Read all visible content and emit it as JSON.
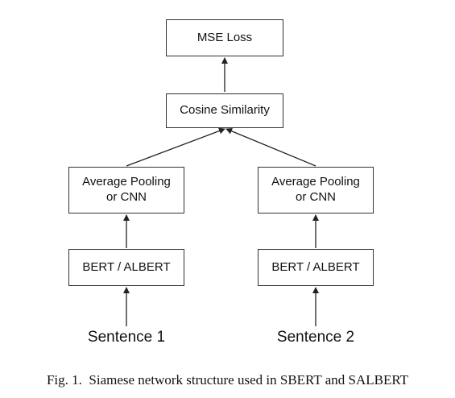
{
  "nodes": {
    "mse_loss": "MSE Loss",
    "cosine_similarity": "Cosine Similarity",
    "pooling_left": "Average Pooling\nor CNN",
    "pooling_right": "Average Pooling\nor CNN",
    "bert_left": "BERT / ALBERT",
    "bert_right": "BERT / ALBERT"
  },
  "inputs": {
    "sentence_1": "Sentence 1",
    "sentence_2": "Sentence 2"
  },
  "caption": "Fig. 1.  Siamese network structure used in SBERT and SALBERT"
}
